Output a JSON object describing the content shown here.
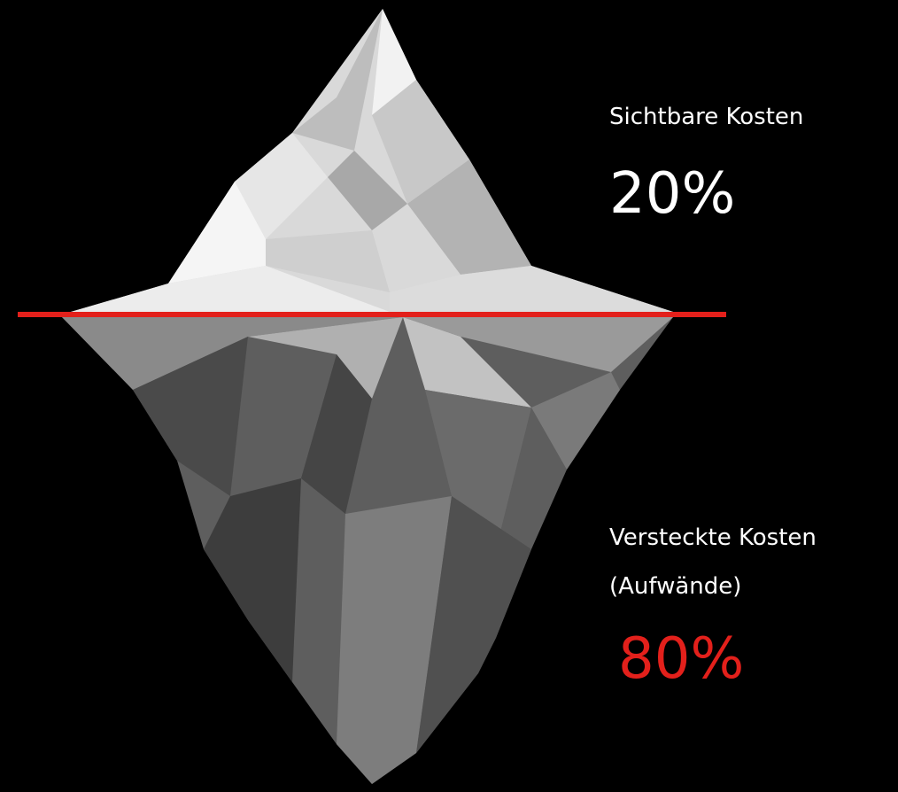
{
  "visible": {
    "label": "Sichtbare Kosten",
    "share": "20%"
  },
  "hidden": {
    "label": "Versteckte Kosten",
    "note": "(Aufwände)",
    "share": "80%"
  }
}
